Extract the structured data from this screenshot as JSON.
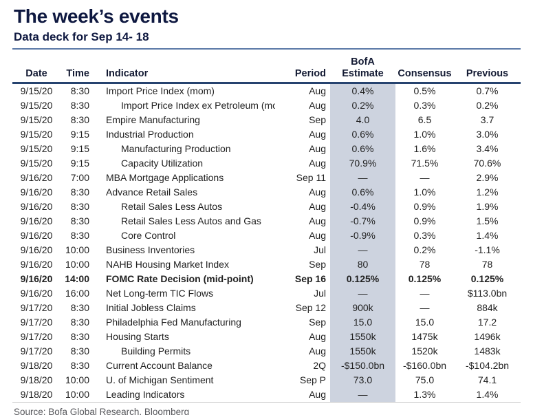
{
  "header": {
    "title": "The week’s events",
    "subtitle": "Data deck for Sep 14- 18"
  },
  "colors": {
    "title_navy": "#0e1840",
    "top_rule_blue": "#5b79a7",
    "header_rule_navy": "#26436f",
    "estimate_column_shade": "#cdd3df",
    "source_gray": "#55565a"
  },
  "table": {
    "headers": {
      "date": "Date",
      "time": "Time",
      "indicator": "Indicator",
      "period": "Period",
      "estimate_line1": "BofA",
      "estimate_line2": "Estimate",
      "consensus": "Consensus",
      "previous": "Previous"
    },
    "rows": [
      {
        "date": "9/15/20",
        "time": "8:30",
        "indicator": "Import Price Index (mom)",
        "indent": false,
        "period": "Aug",
        "estimate": "0.4%",
        "consensus": "0.5%",
        "previous": "0.7%",
        "bold": false
      },
      {
        "date": "9/15/20",
        "time": "8:30",
        "indicator": "Import Price Index ex Petroleum (mom)",
        "indent": true,
        "period": "Aug",
        "estimate": "0.2%",
        "consensus": "0.3%",
        "previous": "0.2%",
        "bold": false
      },
      {
        "date": "9/15/20",
        "time": "8:30",
        "indicator": "Empire Manufacturing",
        "indent": false,
        "period": "Sep",
        "estimate": "4.0",
        "consensus": "6.5",
        "previous": "3.7",
        "bold": false
      },
      {
        "date": "9/15/20",
        "time": "9:15",
        "indicator": "Industrial Production",
        "indent": false,
        "period": "Aug",
        "estimate": "0.6%",
        "consensus": "1.0%",
        "previous": "3.0%",
        "bold": false
      },
      {
        "date": "9/15/20",
        "time": "9:15",
        "indicator": "Manufacturing Production",
        "indent": true,
        "period": "Aug",
        "estimate": "0.6%",
        "consensus": "1.6%",
        "previous": "3.4%",
        "bold": false
      },
      {
        "date": "9/15/20",
        "time": "9:15",
        "indicator": "Capacity Utilization",
        "indent": true,
        "period": "Aug",
        "estimate": "70.9%",
        "consensus": "71.5%",
        "previous": "70.6%",
        "bold": false
      },
      {
        "date": "9/16/20",
        "time": "7:00",
        "indicator": "MBA Mortgage Applications",
        "indent": false,
        "period": "Sep 11",
        "estimate": "—",
        "consensus": "—",
        "previous": "2.9%",
        "bold": false
      },
      {
        "date": "9/16/20",
        "time": "8:30",
        "indicator": "Advance Retail Sales",
        "indent": false,
        "period": "Aug",
        "estimate": "0.6%",
        "consensus": "1.0%",
        "previous": "1.2%",
        "bold": false
      },
      {
        "date": "9/16/20",
        "time": "8:30",
        "indicator": "Retail Sales Less Autos",
        "indent": true,
        "period": "Aug",
        "estimate": "-0.4%",
        "consensus": "0.9%",
        "previous": "1.9%",
        "bold": false
      },
      {
        "date": "9/16/20",
        "time": "8:30",
        "indicator": "Retail Sales Less Autos and Gas",
        "indent": true,
        "period": "Aug",
        "estimate": "-0.7%",
        "consensus": "0.9%",
        "previous": "1.5%",
        "bold": false
      },
      {
        "date": "9/16/20",
        "time": "8:30",
        "indicator": "Core Control",
        "indent": true,
        "period": "Aug",
        "estimate": "-0.9%",
        "consensus": "0.3%",
        "previous": "1.4%",
        "bold": false
      },
      {
        "date": "9/16/20",
        "time": "10:00",
        "indicator": "Business Inventories",
        "indent": false,
        "period": "Jul",
        "estimate": "—",
        "consensus": "0.2%",
        "previous": "-1.1%",
        "bold": false
      },
      {
        "date": "9/16/20",
        "time": "10:00",
        "indicator": "NAHB Housing Market Index",
        "indent": false,
        "period": "Sep",
        "estimate": "80",
        "consensus": "78",
        "previous": "78",
        "bold": false
      },
      {
        "date": "9/16/20",
        "time": "14:00",
        "indicator": "FOMC Rate Decision (mid-point)",
        "indent": false,
        "period": "Sep 16",
        "estimate": "0.125%",
        "consensus": "0.125%",
        "previous": "0.125%",
        "bold": true
      },
      {
        "date": "9/16/20",
        "time": "16:00",
        "indicator": "Net Long-term TIC Flows",
        "indent": false,
        "period": "Jul",
        "estimate": "—",
        "consensus": "—",
        "previous": "$113.0bn",
        "bold": false
      },
      {
        "date": "9/17/20",
        "time": "8:30",
        "indicator": "Initial Jobless Claims",
        "indent": false,
        "period": "Sep 12",
        "estimate": "900k",
        "consensus": "—",
        "previous": "884k",
        "bold": false
      },
      {
        "date": "9/17/20",
        "time": "8:30",
        "indicator": "Philadelphia Fed Manufacturing",
        "indent": false,
        "period": "Sep",
        "estimate": "15.0",
        "consensus": "15.0",
        "previous": "17.2",
        "bold": false
      },
      {
        "date": "9/17/20",
        "time": "8:30",
        "indicator": "Housing Starts",
        "indent": false,
        "period": "Aug",
        "estimate": "1550k",
        "consensus": "1475k",
        "previous": "1496k",
        "bold": false
      },
      {
        "date": "9/17/20",
        "time": "8:30",
        "indicator": "Building Permits",
        "indent": true,
        "period": "Aug",
        "estimate": "1550k",
        "consensus": "1520k",
        "previous": "1483k",
        "bold": false
      },
      {
        "date": "9/18/20",
        "time": "8:30",
        "indicator": "Current Account Balance",
        "indent": false,
        "period": "2Q",
        "estimate": "-$150.0bn",
        "consensus": "-$160.0bn",
        "previous": "-$104.2bn",
        "bold": false
      },
      {
        "date": "9/18/20",
        "time": "10:00",
        "indicator": "U. of Michigan Sentiment",
        "indent": false,
        "period": "Sep P",
        "estimate": "73.0",
        "consensus": "75.0",
        "previous": "74.1",
        "bold": false
      },
      {
        "date": "9/18/20",
        "time": "10:00",
        "indicator": "Leading Indicators",
        "indent": false,
        "period": "Aug",
        "estimate": "—",
        "consensus": "1.3%",
        "previous": "1.4%",
        "bold": false
      }
    ]
  },
  "footer": {
    "source": "Source: Bofa Global Research, Bloomberg"
  }
}
